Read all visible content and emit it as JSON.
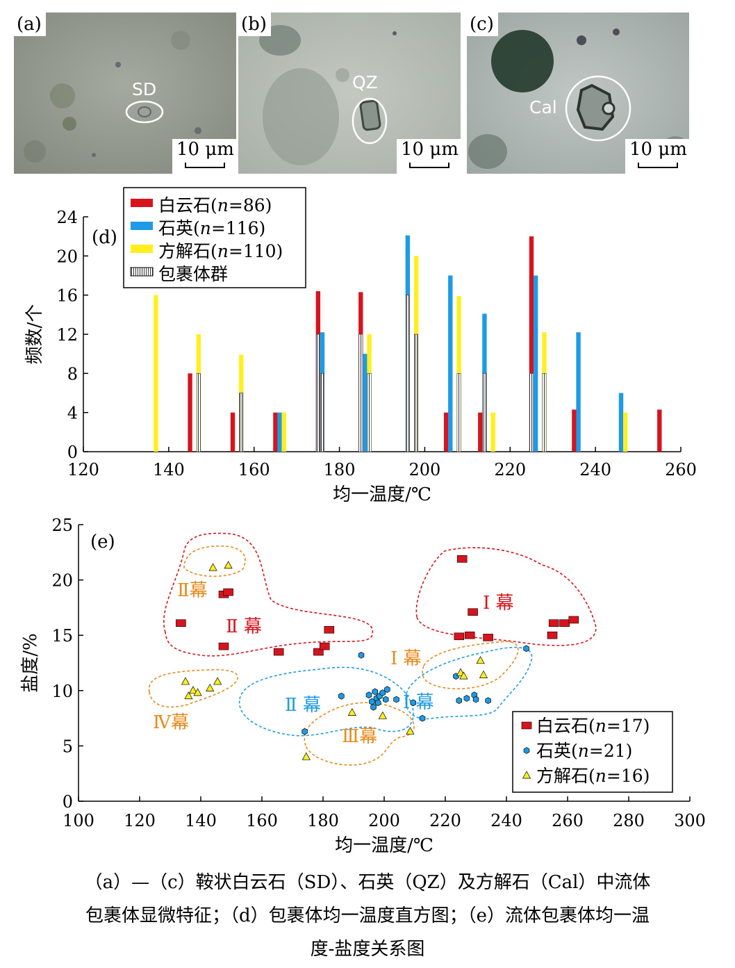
{
  "photos": [
    {
      "label": "(a)",
      "mineral": "SD",
      "scale": "10 μm"
    },
    {
      "label": "(b)",
      "mineral": "QZ",
      "scale": "10 μm"
    },
    {
      "label": "(c)",
      "mineral": "Cal",
      "scale": "10 μm"
    }
  ],
  "chart_data": [
    {
      "type": "bar",
      "panel_label": "(d)",
      "xlabel": "均一温度/℃",
      "ylabel": "频数/个",
      "xlim": [
        120,
        260
      ],
      "ylim": [
        0,
        24
      ],
      "xticks": [
        120,
        140,
        160,
        180,
        200,
        220,
        240,
        260
      ],
      "yticks": [
        0,
        4,
        8,
        12,
        16,
        20,
        24
      ],
      "grid": false,
      "legend_position": "top-left",
      "legend": [
        {
          "name": "白云石(n=86)",
          "prefix": "白云石(",
          "italic": "n",
          "suffix": "=86)",
          "color": "#d7141e"
        },
        {
          "name": "石英(n=116)",
          "prefix": "石英(",
          "italic": "n",
          "suffix": "=116)",
          "color": "#1e9be6"
        },
        {
          "name": "方解石(n=110)",
          "prefix": "方解石(",
          "italic": "n",
          "suffix": "=110)",
          "color": "#ffef1e"
        },
        {
          "name": "包裹体群",
          "prefix": "包裹体群",
          "italic": "",
          "suffix": "",
          "color": "hatched"
        }
      ],
      "series": [
        {
          "name": "白云石",
          "color": "#d7141e",
          "x": [
            145,
            155,
            165,
            175,
            185,
            205,
            213,
            225,
            235,
            255
          ],
          "values": [
            8,
            4,
            4,
            16.4,
            16.3,
            4,
            4,
            22,
            4.3,
            4.3
          ],
          "group_values": [
            0,
            0,
            0,
            12,
            12,
            0,
            0,
            8,
            0,
            0
          ]
        },
        {
          "name": "石英",
          "color": "#1e9be6",
          "x": [
            166,
            176,
            186,
            196,
            206,
            214,
            226,
            236,
            246
          ],
          "values": [
            4,
            12.2,
            10,
            22.1,
            18,
            14.1,
            18,
            12.2,
            6
          ],
          "group_values": [
            0,
            8,
            0,
            16,
            0,
            8,
            0,
            0,
            0
          ]
        },
        {
          "name": "方解石",
          "color": "#ffef1e",
          "x": [
            137,
            147,
            157,
            167,
            187,
            198,
            208,
            216,
            228,
            247
          ],
          "values": [
            16,
            12,
            9.9,
            4,
            12,
            20,
            15.9,
            4,
            12.2,
            4
          ],
          "group_values": [
            0,
            8,
            6,
            0,
            8,
            12,
            8,
            0,
            8,
            0
          ]
        }
      ]
    },
    {
      "type": "scatter",
      "panel_label": "(e)",
      "xlabel": "均一温度/℃",
      "ylabel": "盐度/%",
      "xlim": [
        100,
        300
      ],
      "ylim": [
        0,
        25
      ],
      "xticks": [
        100,
        120,
        140,
        160,
        180,
        200,
        220,
        240,
        260,
        280,
        300
      ],
      "yticks": [
        0,
        5,
        10,
        15,
        20,
        25
      ],
      "grid": false,
      "legend_position": "bottom-right",
      "legend": [
        {
          "name": "白云石(n=17)",
          "prefix": "白云石(",
          "italic": "n",
          "suffix": "=17)",
          "marker": "square",
          "color": "#d7141e"
        },
        {
          "name": "石英(n=21)",
          "prefix": "石英(",
          "italic": "n",
          "suffix": "=21)",
          "marker": "hexagon",
          "color": "#1e9be6"
        },
        {
          "name": "方解石(n=16)",
          "prefix": "方解石(",
          "italic": "n",
          "suffix": "=16)",
          "marker": "triangle",
          "color": "#ffef1e"
        }
      ],
      "series": [
        {
          "name": "白云石",
          "marker": "square",
          "color": "#d7141e",
          "x": [
            133.5,
            147.5,
            149,
            147.5,
            165.5,
            178.5,
            180.5,
            182,
            225.5,
            224.5,
            228,
            229,
            234,
            255,
            255.5,
            259,
            262
          ],
          "y": [
            16.1,
            18.7,
            18.9,
            14.0,
            13.5,
            13.5,
            14.0,
            15.5,
            21.9,
            14.9,
            15.0,
            17.1,
            14.8,
            15.0,
            16.1,
            16.1,
            16.4
          ]
        },
        {
          "name": "石英",
          "marker": "hexagon",
          "color": "#1e9be6",
          "x": [
            174,
            186,
            192.5,
            195,
            196,
            196.5,
            197,
            197.5,
            198,
            198.5,
            199.5,
            200.5,
            201,
            204,
            209.5,
            212.5,
            224.5,
            227,
            229.5,
            230,
            234
          ],
          "y": [
            6.3,
            9.5,
            13.2,
            9.6,
            9.0,
            8.5,
            9.9,
            9.3,
            8.9,
            9.5,
            9.8,
            9.2,
            10.1,
            9.2,
            8.9,
            7.5,
            9.1,
            9.3,
            9.6,
            9.2,
            9.1
          ],
          "extra": [
            [
              246.5,
              13.8
            ],
            [
              223.5,
              11.3
            ]
          ]
        },
        {
          "name": "方解石",
          "marker": "triangle",
          "color": "#ffef1e",
          "x": [
            135,
            136,
            137.5,
            139,
            143,
            145.5,
            144,
            149,
            174.5,
            189.5,
            199.5,
            208.5,
            225,
            226,
            231.5,
            232.5
          ],
          "y": [
            10.8,
            9.5,
            10.0,
            9.8,
            10.2,
            10.8,
            21.1,
            21.3,
            4.0,
            8.0,
            7.7,
            6.3,
            11.6,
            11.3,
            12.7,
            11.4
          ]
        }
      ],
      "annotations": [
        {
          "text": "Ⅱ幕",
          "color": "#e8891b"
        },
        {
          "text": "Ⅱ 幕",
          "color": "#d7141e"
        },
        {
          "text": "Ⅰ 幕",
          "color": "#d7141e"
        },
        {
          "text": "Ⅰ 幕",
          "color": "#e8891b"
        },
        {
          "text": "Ⅱ 幕",
          "color": "#1e9be6"
        },
        {
          "text": "Ⅰ 幕",
          "color": "#1e9be6"
        },
        {
          "text": "Ⅳ幕",
          "color": "#e8891b"
        },
        {
          "text": "Ⅲ幕",
          "color": "#e8891b"
        }
      ]
    }
  ],
  "caption": {
    "line1": "（a）—（c）鞍状白云石（SD）、石英（QZ）及方解石（Cal）中流体",
    "line2": "包裹体显微特征；（d）包裹体均一温度直方图；（e）流体包裹体均一温",
    "line3": "度-盐度关系图"
  }
}
